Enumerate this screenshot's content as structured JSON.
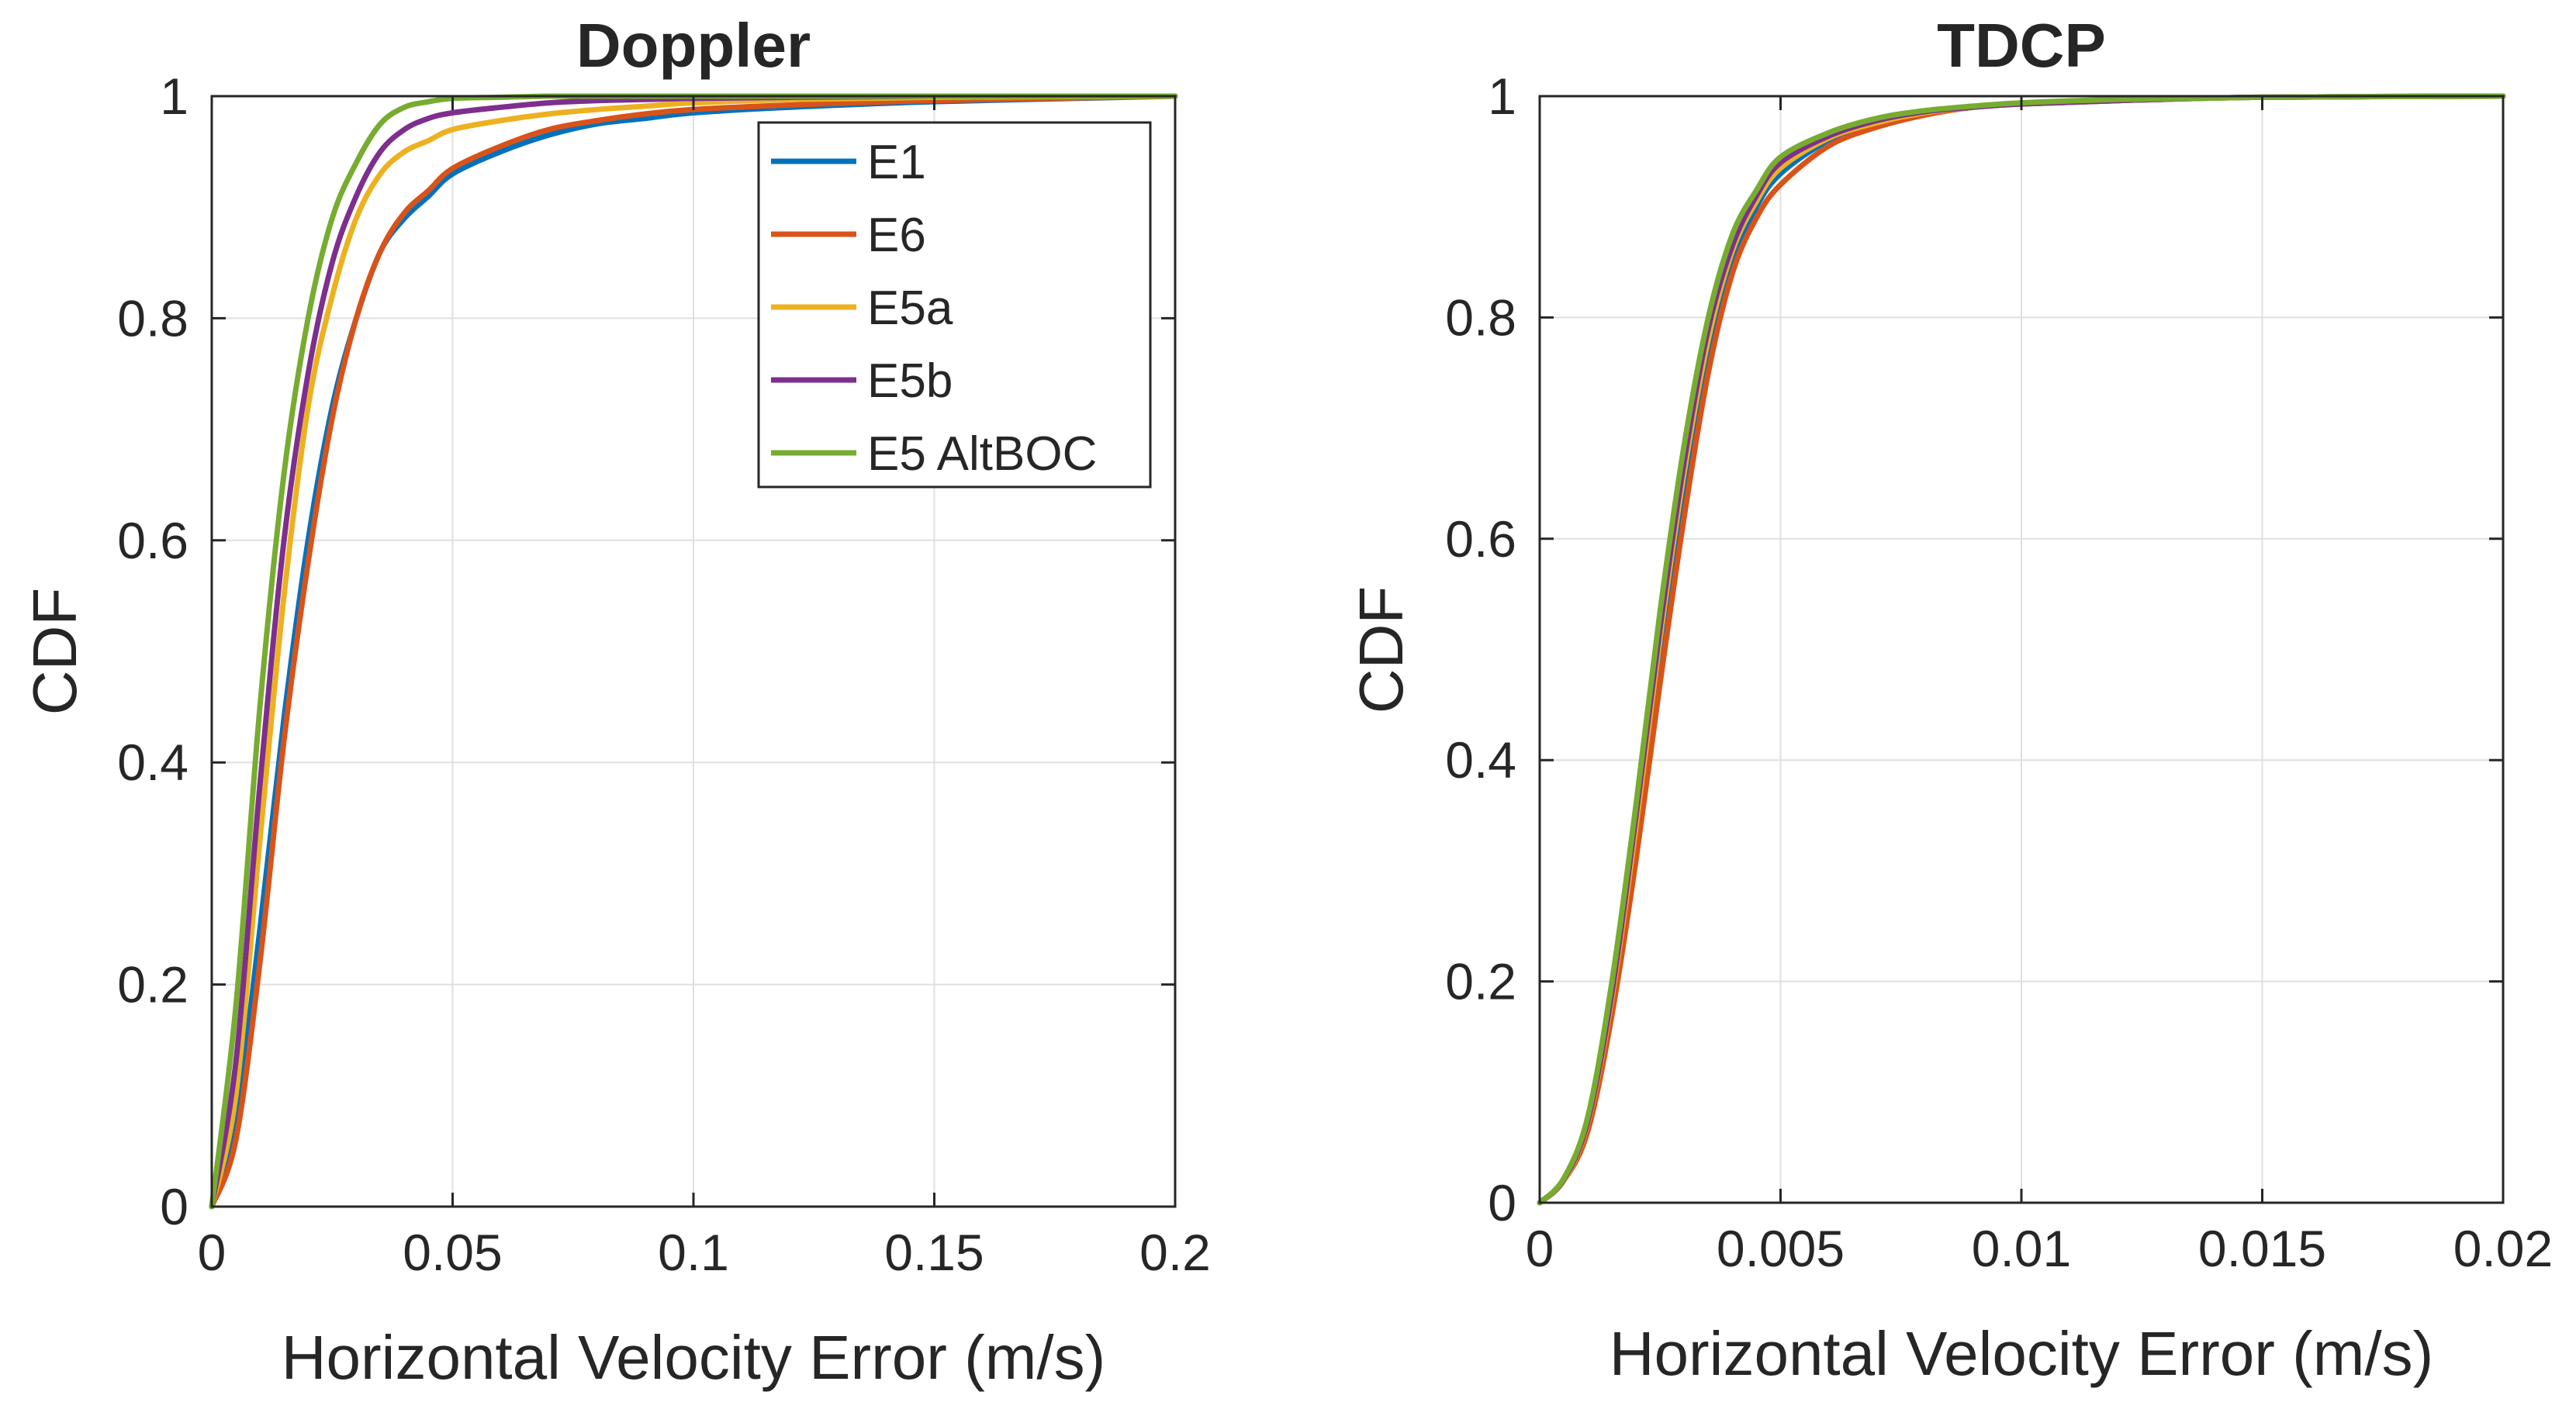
{
  "chart_data": [
    {
      "type": "line",
      "title": "Doppler",
      "xlabel": "Horizontal Velocity Error (m/s)",
      "ylabel": "CDF",
      "xlim": [
        0,
        0.2
      ],
      "ylim": [
        0,
        1
      ],
      "xticks": [
        0,
        0.05,
        0.1,
        0.15,
        0.2
      ],
      "xtick_labels": [
        "0",
        "0.05",
        "0.1",
        "0.15",
        "0.2"
      ],
      "yticks": [
        0,
        0.2,
        0.4,
        0.6,
        0.8,
        1
      ],
      "ytick_labels": [
        "0",
        "0.2",
        "0.4",
        "0.6",
        "0.8",
        "1"
      ],
      "grid": true,
      "legend": {
        "location": "top-right",
        "entries": [
          "E1",
          "E6",
          "E5a",
          "E5b",
          "E5 AltBOC"
        ]
      },
      "series": [
        {
          "name": "E1",
          "color": "#0072BD",
          "x": [
            0,
            0.005,
            0.01,
            0.015,
            0.02,
            0.025,
            0.03,
            0.035,
            0.04,
            0.045,
            0.05,
            0.06,
            0.07,
            0.08,
            0.09,
            0.1,
            0.12,
            0.15,
            0.2
          ],
          "y": [
            0,
            0.08,
            0.25,
            0.44,
            0.6,
            0.72,
            0.8,
            0.86,
            0.89,
            0.91,
            0.93,
            0.95,
            0.965,
            0.975,
            0.98,
            0.985,
            0.99,
            0.995,
            1
          ]
        },
        {
          "name": "E6",
          "color": "#D95319",
          "x": [
            0,
            0.005,
            0.01,
            0.015,
            0.02,
            0.025,
            0.03,
            0.035,
            0.04,
            0.045,
            0.05,
            0.06,
            0.07,
            0.08,
            0.09,
            0.1,
            0.12,
            0.15,
            0.2
          ],
          "y": [
            0,
            0.06,
            0.22,
            0.42,
            0.58,
            0.71,
            0.8,
            0.86,
            0.895,
            0.915,
            0.935,
            0.955,
            0.97,
            0.978,
            0.984,
            0.988,
            0.992,
            0.996,
            1
          ]
        },
        {
          "name": "E5a",
          "color": "#EDB120",
          "x": [
            0,
            0.005,
            0.01,
            0.015,
            0.02,
            0.025,
            0.03,
            0.035,
            0.04,
            0.045,
            0.05,
            0.06,
            0.07,
            0.08,
            0.09,
            0.1,
            0.12,
            0.15,
            0.2
          ],
          "y": [
            0,
            0.1,
            0.33,
            0.55,
            0.72,
            0.82,
            0.89,
            0.93,
            0.95,
            0.96,
            0.97,
            0.978,
            0.984,
            0.988,
            0.991,
            0.994,
            0.997,
            0.999,
            1
          ]
        },
        {
          "name": "E5b",
          "color": "#7E2F8E",
          "x": [
            0,
            0.005,
            0.01,
            0.015,
            0.02,
            0.025,
            0.03,
            0.035,
            0.04,
            0.045,
            0.05,
            0.06,
            0.07,
            0.08,
            0.09,
            0.1,
            0.12,
            0.15,
            0.2
          ],
          "y": [
            0,
            0.13,
            0.38,
            0.6,
            0.75,
            0.85,
            0.91,
            0.95,
            0.97,
            0.98,
            0.985,
            0.99,
            0.994,
            0.996,
            0.997,
            0.998,
            0.999,
            1,
            1
          ]
        },
        {
          "name": "E5 AltBOC",
          "color": "#77AC30",
          "x": [
            0,
            0.005,
            0.01,
            0.015,
            0.02,
            0.025,
            0.03,
            0.035,
            0.04,
            0.045,
            0.05,
            0.06,
            0.07,
            0.08,
            0.09,
            0.1,
            0.12,
            0.15,
            0.2
          ],
          "y": [
            0,
            0.18,
            0.45,
            0.66,
            0.8,
            0.89,
            0.94,
            0.975,
            0.99,
            0.995,
            0.998,
            0.999,
            1,
            1,
            1,
            1,
            1,
            1,
            1
          ]
        }
      ]
    },
    {
      "type": "line",
      "title": "TDCP",
      "xlabel": "Horizontal Velocity Error (m/s)",
      "ylabel": "CDF",
      "xlim": [
        0,
        0.02
      ],
      "ylim": [
        0,
        1
      ],
      "xticks": [
        0,
        0.005,
        0.01,
        0.015,
        0.02
      ],
      "xtick_labels": [
        "0",
        "0.005",
        "0.01",
        "0.015",
        "0.02"
      ],
      "yticks": [
        0,
        0.2,
        0.4,
        0.6,
        0.8,
        1
      ],
      "ytick_labels": [
        "0",
        "0.2",
        "0.4",
        "0.6",
        "0.8",
        "1"
      ],
      "grid": true,
      "series": [
        {
          "name": "E1",
          "color": "#0072BD",
          "x": [
            0,
            0.0005,
            0.001,
            0.0015,
            0.002,
            0.0025,
            0.003,
            0.0035,
            0.004,
            0.0045,
            0.005,
            0.006,
            0.007,
            0.008,
            0.009,
            0.01,
            0.012,
            0.015,
            0.02
          ],
          "y": [
            0,
            0.02,
            0.07,
            0.18,
            0.33,
            0.5,
            0.65,
            0.77,
            0.85,
            0.9,
            0.93,
            0.96,
            0.975,
            0.984,
            0.99,
            0.993,
            0.996,
            0.999,
            1
          ]
        },
        {
          "name": "E6",
          "color": "#D95319",
          "x": [
            0,
            0.0005,
            0.001,
            0.0015,
            0.002,
            0.0025,
            0.003,
            0.0035,
            0.004,
            0.0045,
            0.005,
            0.006,
            0.007,
            0.008,
            0.009,
            0.01,
            0.012,
            0.015,
            0.02
          ],
          "y": [
            0,
            0.02,
            0.065,
            0.17,
            0.31,
            0.47,
            0.62,
            0.75,
            0.84,
            0.89,
            0.92,
            0.955,
            0.972,
            0.983,
            0.99,
            0.993,
            0.996,
            0.999,
            1
          ]
        },
        {
          "name": "E5a",
          "color": "#EDB120",
          "x": [
            0,
            0.0005,
            0.001,
            0.0015,
            0.002,
            0.0025,
            0.003,
            0.0035,
            0.004,
            0.0045,
            0.005,
            0.006,
            0.007,
            0.008,
            0.009,
            0.01,
            0.012,
            0.015,
            0.02
          ],
          "y": [
            0,
            0.02,
            0.072,
            0.185,
            0.34,
            0.51,
            0.66,
            0.78,
            0.86,
            0.905,
            0.935,
            0.962,
            0.976,
            0.985,
            0.99,
            0.993,
            0.996,
            0.999,
            1
          ]
        },
        {
          "name": "E5b",
          "color": "#7E2F8E",
          "x": [
            0,
            0.0005,
            0.001,
            0.0015,
            0.002,
            0.0025,
            0.003,
            0.0035,
            0.004,
            0.0045,
            0.005,
            0.006,
            0.007,
            0.008,
            0.009,
            0.01,
            0.012,
            0.015,
            0.02
          ],
          "y": [
            0,
            0.021,
            0.074,
            0.19,
            0.35,
            0.52,
            0.67,
            0.79,
            0.865,
            0.91,
            0.94,
            0.964,
            0.978,
            0.986,
            0.99,
            0.993,
            0.996,
            0.999,
            1
          ]
        },
        {
          "name": "E5 AltBOC",
          "color": "#77AC30",
          "x": [
            0,
            0.0005,
            0.001,
            0.0015,
            0.002,
            0.0025,
            0.003,
            0.0035,
            0.004,
            0.0045,
            0.005,
            0.006,
            0.007,
            0.008,
            0.009,
            0.01,
            0.012,
            0.015,
            0.02
          ],
          "y": [
            0,
            0.022,
            0.078,
            0.2,
            0.36,
            0.535,
            0.685,
            0.8,
            0.875,
            0.915,
            0.945,
            0.967,
            0.98,
            0.987,
            0.991,
            0.994,
            0.997,
            0.999,
            1
          ]
        }
      ]
    }
  ]
}
